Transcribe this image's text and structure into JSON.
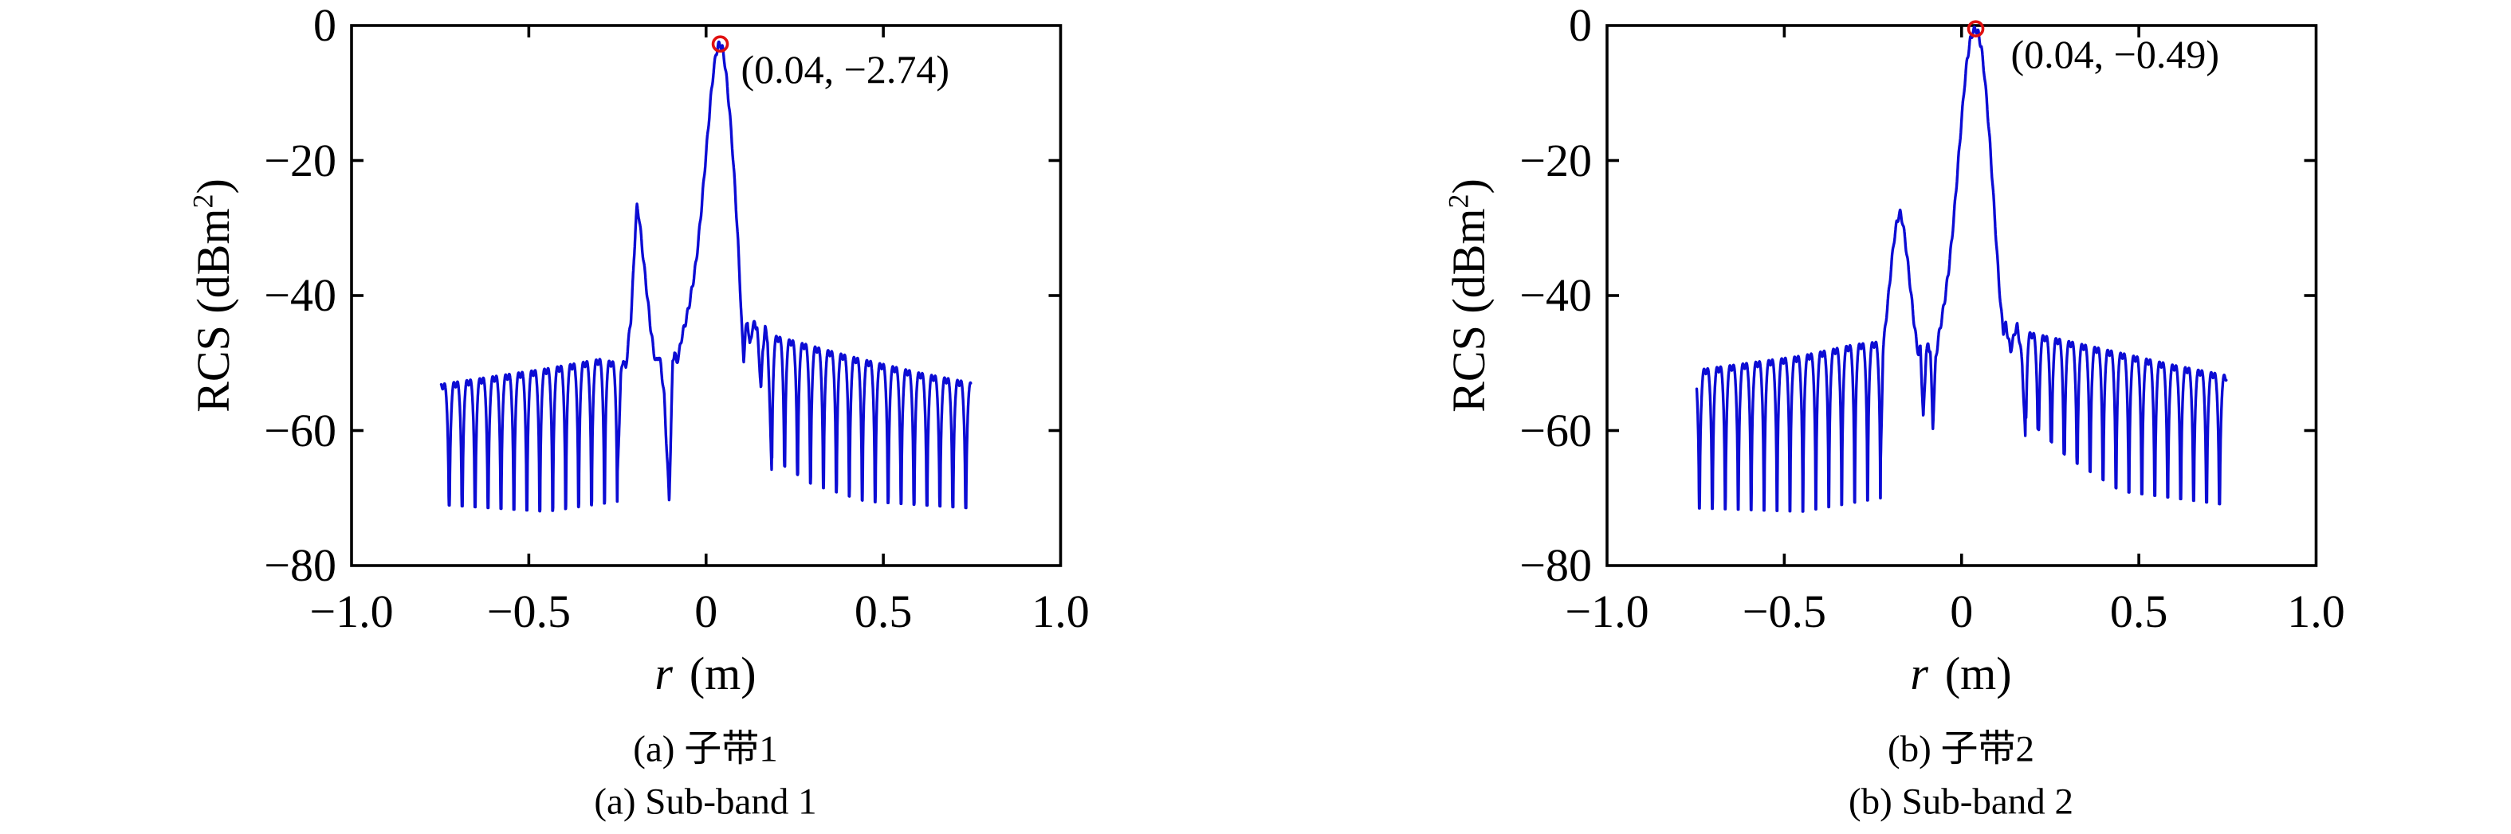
{
  "figure": {
    "background": "#ffffff",
    "curve_color": "#0c0cd4",
    "marker_color": "#e01010",
    "axis_color": "#000000"
  },
  "chart_data": [
    {
      "type": "line",
      "caption_zh": "(a) 子带1",
      "caption_en": "(a) Sub-band 1",
      "xlabel_var": "r",
      "xlabel_unit": "(m)",
      "ylabel_prefix": "RCS (dBm",
      "ylabel_sup": "2",
      "ylabel_suffix": ")",
      "xlim": [
        -1,
        1
      ],
      "ylim": [
        -80,
        0
      ],
      "xticks": [
        {
          "v": -1,
          "label": "−1.0"
        },
        {
          "v": -0.5,
          "label": "−0.5"
        },
        {
          "v": 0,
          "label": "0"
        },
        {
          "v": 0.5,
          "label": "0.5"
        },
        {
          "v": 1,
          "label": "1.0"
        }
      ],
      "yticks": [
        {
          "v": 0,
          "label": "0"
        },
        {
          "v": -20,
          "label": "−20"
        },
        {
          "v": -40,
          "label": "−40"
        },
        {
          "v": -60,
          "label": "−60"
        },
        {
          "v": -80,
          "label": "−80"
        }
      ],
      "peak": {
        "x": 0.04,
        "y": -2.74,
        "label": "(0.04, −2.74)"
      },
      "secondary_lobe": {
        "x": -0.195,
        "y": -26.9
      },
      "curve": {
        "x_start": -0.747,
        "x_end": 0.747,
        "period": 0.0365,
        "ripple_amp": 0.5,
        "ripple_wavelength": 0.011,
        "dimple_depth": 2.4,
        "left_field": {
          "to": -0.25,
          "null_anchor": -0.25,
          "env_top": [
            [
              -0.747,
              -51.5
            ],
            [
              -0.45,
              -49.2
            ],
            [
              -0.3,
              -47.8
            ],
            [
              -0.25,
              -48.3
            ]
          ],
          "null_level": [
            [
              -0.747,
              -71.0
            ],
            [
              -0.45,
              -72.0
            ],
            [
              -0.25,
              -70.5
            ]
          ]
        },
        "right_field": {
          "from": 0.185,
          "null_anchor": 0.185,
          "env_top": [
            [
              0.185,
              -44.2
            ],
            [
              0.4,
              -47.3
            ],
            [
              0.6,
              -49.8
            ],
            [
              0.747,
              -51.3
            ]
          ],
          "null_level": [
            [
              0.185,
              -64.0
            ],
            [
              0.3,
              -68.0
            ],
            [
              0.45,
              -70.5
            ],
            [
              0.747,
              -71.5
            ]
          ]
        },
        "anchors": [
          [
            -0.25,
            -67
          ],
          [
            -0.2405,
            -52
          ],
          [
            -0.2335,
            -49.2
          ],
          [
            -0.2265,
            -51
          ],
          [
            -0.2195,
            -47
          ],
          [
            -0.212,
            -43.5
          ],
          [
            -0.205,
            -36.5
          ],
          [
            -0.199,
            -29.8
          ],
          [
            -0.195,
            -26.9
          ],
          [
            -0.189,
            -28.3
          ],
          [
            -0.181,
            -32.5
          ],
          [
            -0.173,
            -36.5
          ],
          [
            -0.165,
            -40.5
          ],
          [
            -0.157,
            -44.5
          ],
          [
            -0.148,
            -48.2
          ],
          [
            -0.141,
            -50
          ],
          [
            -0.134,
            -48.8
          ],
          [
            -0.127,
            -50.5
          ],
          [
            -0.118,
            -55
          ],
          [
            -0.104,
            -70.5
          ],
          [
            -0.094,
            -49.8
          ],
          [
            -0.089,
            -48.2
          ],
          [
            -0.083,
            -50
          ],
          [
            -0.076,
            -48.5
          ],
          [
            -0.068,
            -46
          ],
          [
            -0.058,
            -44
          ],
          [
            -0.048,
            -41.5
          ],
          [
            -0.038,
            -38.5
          ],
          [
            -0.028,
            -35
          ],
          [
            -0.02,
            -31
          ],
          [
            -0.012,
            -26.5
          ],
          [
            -0.004,
            -21.5
          ],
          [
            0.004,
            -16.5
          ],
          [
            0.012,
            -11.5
          ],
          [
            0.02,
            -7.2
          ],
          [
            0.028,
            -4.2
          ],
          [
            0.034,
            -3
          ],
          [
            0.04,
            -2.74
          ],
          [
            0.046,
            -3.4
          ],
          [
            0.052,
            -5.2
          ],
          [
            0.058,
            -8
          ],
          [
            0.066,
            -12.5
          ],
          [
            0.074,
            -18
          ],
          [
            0.082,
            -24.5
          ],
          [
            0.09,
            -32
          ],
          [
            0.097,
            -40
          ],
          [
            0.102,
            -46
          ],
          [
            0.106,
            -49.6
          ],
          [
            0.111,
            -45.5
          ],
          [
            0.117,
            -43.7
          ],
          [
            0.1235,
            -47.6
          ],
          [
            0.13,
            -45
          ],
          [
            0.1375,
            -44
          ],
          [
            0.144,
            -45
          ],
          [
            0.1505,
            -50
          ],
          [
            0.155,
            -54
          ],
          [
            0.16,
            -48
          ],
          [
            0.1665,
            -44.9
          ],
          [
            0.1735,
            -46.5
          ],
          [
            0.185,
            -65.5
          ]
        ]
      }
    },
    {
      "type": "line",
      "caption_zh": "(b) 子带2",
      "caption_en": "(b) Sub-band 2",
      "xlabel_var": "r",
      "xlabel_unit": "(m)",
      "ylabel_prefix": "RCS (dBm",
      "ylabel_sup": "2",
      "ylabel_suffix": ")",
      "xlim": [
        -1,
        1
      ],
      "ylim": [
        -80,
        0
      ],
      "xticks": [
        {
          "v": -1,
          "label": "−1.0"
        },
        {
          "v": -0.5,
          "label": "−0.5"
        },
        {
          "v": 0,
          "label": "0"
        },
        {
          "v": 0.5,
          "label": "0.5"
        },
        {
          "v": 1,
          "label": "1.0"
        }
      ],
      "yticks": [
        {
          "v": 0,
          "label": "0"
        },
        {
          "v": -20,
          "label": "−20"
        },
        {
          "v": -40,
          "label": "−40"
        },
        {
          "v": -60,
          "label": "−60"
        },
        {
          "v": -80,
          "label": "−80"
        }
      ],
      "peak": {
        "x": 0.04,
        "y": -0.49,
        "label": "(0.04, −0.49)"
      },
      "secondary_lobe": {
        "x": -0.173,
        "y": -27.8
      },
      "curve": {
        "x_start": -0.747,
        "x_end": 0.747,
        "period": 0.0365,
        "ripple_amp": 0.5,
        "ripple_wavelength": 0.011,
        "dimple_depth": 2.4,
        "left_field": {
          "to": -0.2285,
          "null_anchor": -0.2285,
          "env_top": [
            [
              -0.747,
              -49.4
            ],
            [
              -0.45,
              -47.3
            ],
            [
              -0.3,
              -45.6
            ],
            [
              -0.2285,
              -45.2
            ]
          ],
          "null_level": [
            [
              -0.747,
              -71.5
            ],
            [
              -0.45,
              -72.0
            ],
            [
              -0.2285,
              -70.0
            ]
          ]
        },
        "right_field": {
          "from": 0.18,
          "null_anchor": 0.18,
          "env_top": [
            [
              0.18,
              -43.7
            ],
            [
              0.4,
              -46.3
            ],
            [
              0.6,
              -48.7
            ],
            [
              0.747,
              -50.2
            ]
          ],
          "null_level": [
            [
              0.18,
              -58.0
            ],
            [
              0.3,
              -64.0
            ],
            [
              0.45,
              -69.0
            ],
            [
              0.747,
              -71.0
            ]
          ]
        },
        "anchors": [
          [
            -0.2285,
            -66
          ],
          [
            -0.2215,
            -48
          ],
          [
            -0.215,
            -44.5
          ],
          [
            -0.207,
            -40.5
          ],
          [
            -0.199,
            -36
          ],
          [
            -0.191,
            -32
          ],
          [
            -0.183,
            -29.3
          ],
          [
            -0.177,
            -28.1
          ],
          [
            -0.173,
            -27.8
          ],
          [
            -0.167,
            -28.9
          ],
          [
            -0.159,
            -31.8
          ],
          [
            -0.151,
            -35.5
          ],
          [
            -0.143,
            -39.5
          ],
          [
            -0.135,
            -43.5
          ],
          [
            -0.127,
            -47
          ],
          [
            -0.121,
            -48.8
          ],
          [
            -0.116,
            -47.6
          ],
          [
            -0.108,
            -58.5
          ],
          [
            -0.1,
            -48.5
          ],
          [
            -0.094,
            -47.3
          ],
          [
            -0.088,
            -48.3
          ],
          [
            -0.081,
            -59.5
          ],
          [
            -0.073,
            -49.5
          ],
          [
            -0.066,
            -46.5
          ],
          [
            -0.057,
            -43.8
          ],
          [
            -0.047,
            -40.5
          ],
          [
            -0.037,
            -36.5
          ],
          [
            -0.027,
            -31.5
          ],
          [
            -0.018,
            -26
          ],
          [
            -0.009,
            -20
          ],
          [
            0,
            -14
          ],
          [
            0.008,
            -9
          ],
          [
            0.016,
            -5
          ],
          [
            0.024,
            -2.3
          ],
          [
            0.032,
            -0.9
          ],
          [
            0.04,
            -0.49
          ],
          [
            0.048,
            -1.3
          ],
          [
            0.056,
            -3.4
          ],
          [
            0.064,
            -7
          ],
          [
            0.072,
            -11.8
          ],
          [
            0.08,
            -17.5
          ],
          [
            0.088,
            -23.8
          ],
          [
            0.096,
            -30.5
          ],
          [
            0.104,
            -37
          ],
          [
            0.111,
            -42
          ],
          [
            0.118,
            -45.3
          ],
          [
            0.125,
            -44.3
          ],
          [
            0.1315,
            -46.2
          ],
          [
            0.138,
            -48.2
          ],
          [
            0.1445,
            -46.8
          ],
          [
            0.151,
            -45.2
          ],
          [
            0.157,
            -44.6
          ],
          [
            0.164,
            -46.8
          ],
          [
            0.171,
            -50
          ],
          [
            0.18,
            -61.5
          ]
        ]
      }
    }
  ]
}
